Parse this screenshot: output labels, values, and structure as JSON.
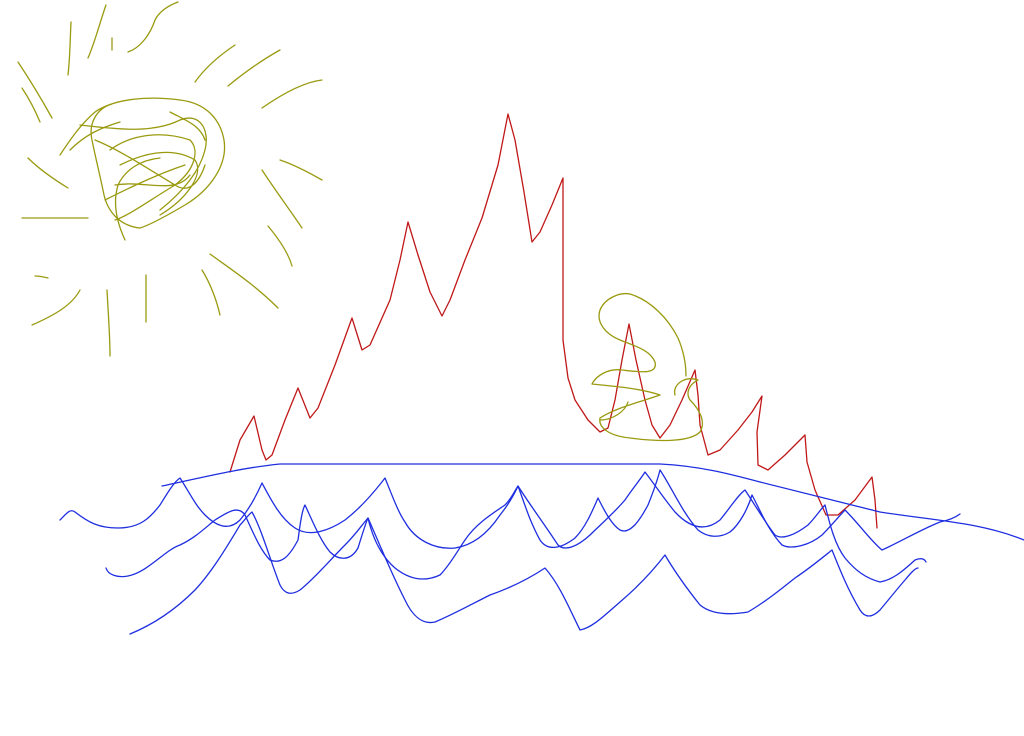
{
  "drawing": {
    "background_color": "#ffffff",
    "sun": {
      "color": "#9a9a10"
    },
    "mountains": {
      "color": "#c01818"
    },
    "small_sun_swirl": {
      "color": "#9a9a10"
    },
    "horizon": {
      "color": "#1e2ee0"
    },
    "waves": {
      "color": "#1e2ee0",
      "count": 3
    }
  }
}
